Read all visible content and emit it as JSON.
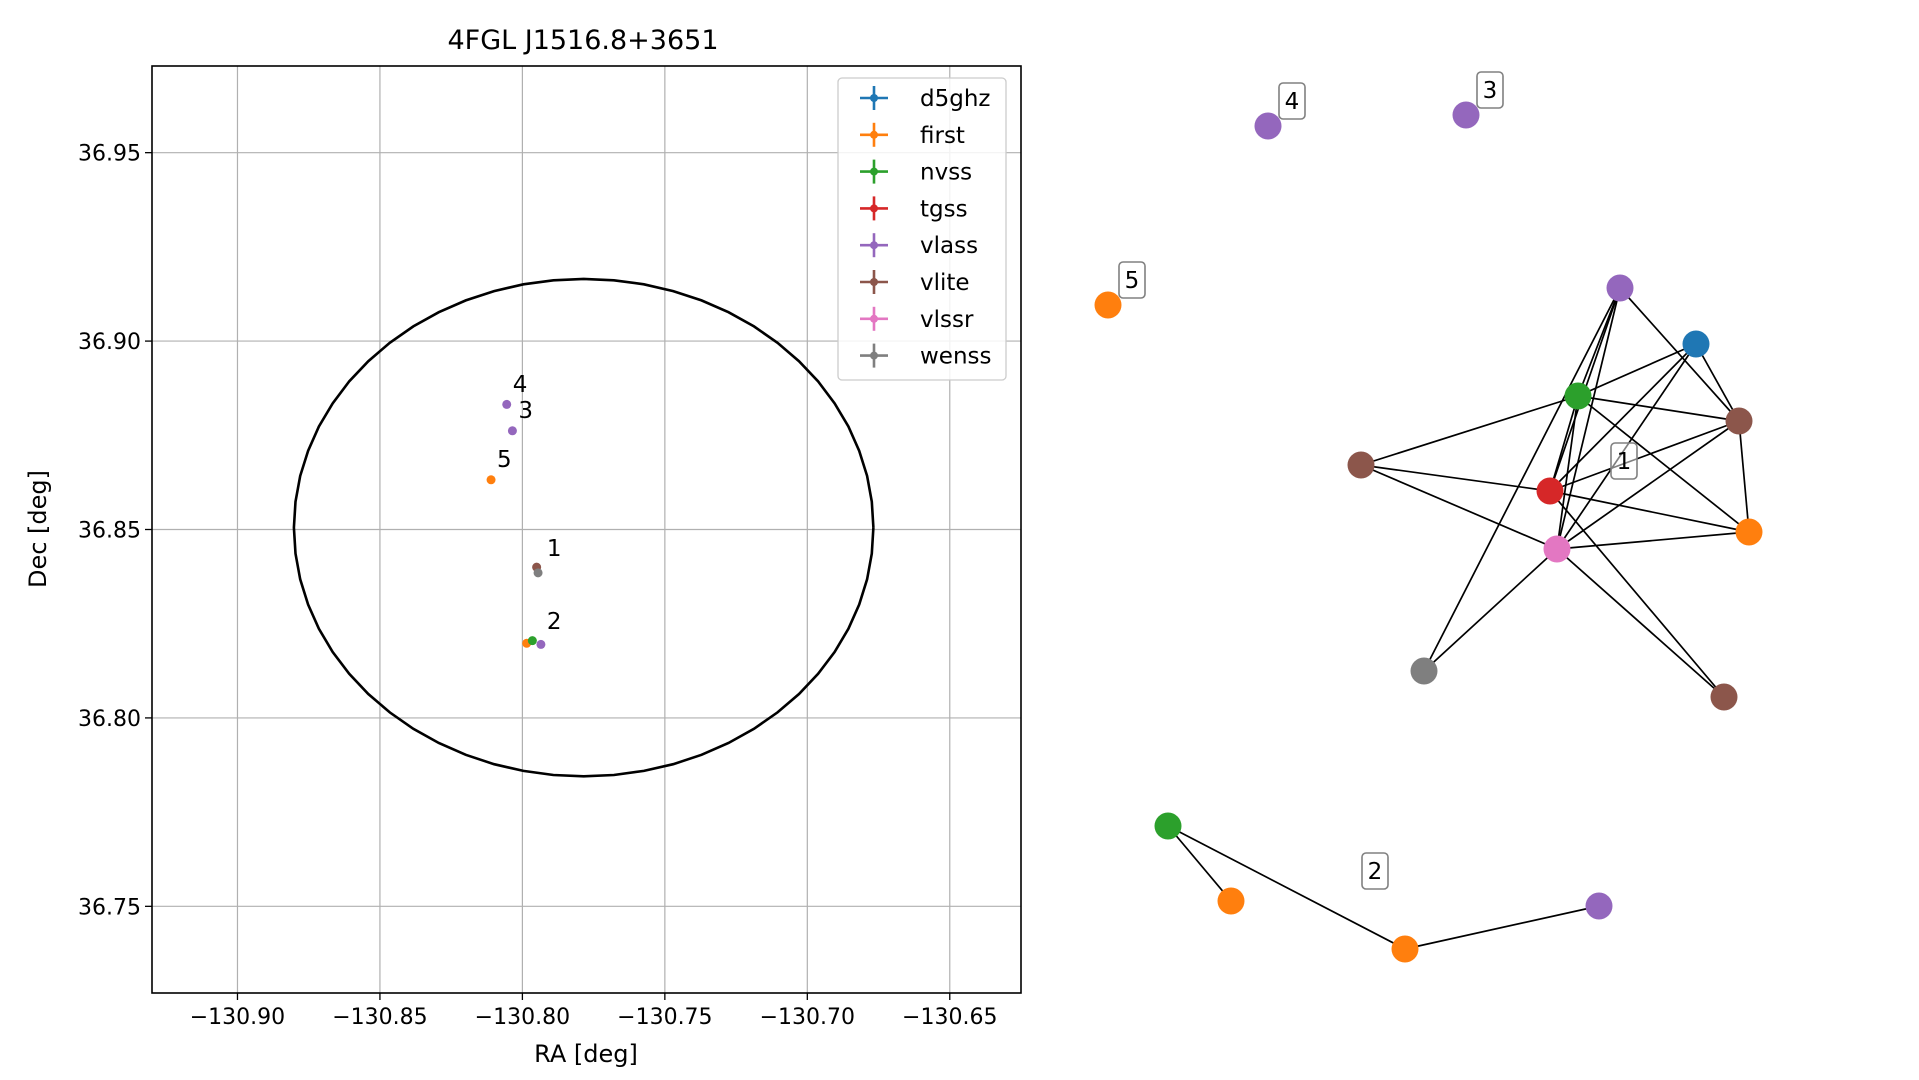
{
  "chart_data": [
    {
      "type": "scatter",
      "title": "4FGL J1516.8+3651",
      "xlabel": "RA [deg]",
      "ylabel": "Dec [deg]",
      "xlim": [
        -130.93,
        -130.625
      ],
      "ylim": [
        36.727,
        36.973
      ],
      "xticks": [
        -130.9,
        -130.85,
        -130.8,
        -130.75,
        -130.7,
        -130.65
      ],
      "xtick_labels": [
        "−130.90",
        "−130.85",
        "−130.80",
        "−130.75",
        "−130.70",
        "−130.65"
      ],
      "yticks": [
        36.75,
        36.8,
        36.85,
        36.9,
        36.95
      ],
      "ytick_labels": [
        "36.75",
        "36.80",
        "36.85",
        "36.90",
        "36.95"
      ],
      "grid": true,
      "legend_position": "top-right",
      "ellipse": {
        "ra": -130.7785,
        "dec": 36.8505,
        "ra_radius": 0.1017,
        "dec_radius": 0.066
      },
      "series": [
        {
          "name": "d5ghz",
          "color": "#1f77b4",
          "points": []
        },
        {
          "name": "first",
          "color": "#ff7f0e",
          "points": [
            {
              "ra": -130.811,
              "dec": 36.8632
            },
            {
              "ra": -130.7985,
              "dec": 36.8198
            }
          ]
        },
        {
          "name": "nvss",
          "color": "#2ca02c",
          "points": [
            {
              "ra": -130.7965,
              "dec": 36.8205
            }
          ]
        },
        {
          "name": "tgss",
          "color": "#d62728",
          "points": []
        },
        {
          "name": "vlass",
          "color": "#9467bd",
          "points": [
            {
              "ra": -130.8055,
              "dec": 36.8832
            },
            {
              "ra": -130.8035,
              "dec": 36.8762
            },
            {
              "ra": -130.7935,
              "dec": 36.8195
            }
          ]
        },
        {
          "name": "vlite",
          "color": "#8c564b",
          "points": [
            {
              "ra": -130.795,
              "dec": 36.84
            }
          ]
        },
        {
          "name": "vlssr",
          "color": "#e377c2",
          "points": []
        },
        {
          "name": "wenss",
          "color": "#7f7f7f",
          "points": [
            {
              "ra": -130.7945,
              "dec": 36.8385
            }
          ]
        }
      ],
      "annotations": [
        {
          "text": "1",
          "ra": -130.7935,
          "dec": 36.8425
        },
        {
          "text": "2",
          "ra": -130.7935,
          "dec": 36.823
        },
        {
          "text": "3",
          "ra": -130.8035,
          "dec": 36.879
        },
        {
          "text": "4",
          "ra": -130.8055,
          "dec": 36.886
        },
        {
          "text": "5",
          "ra": -130.811,
          "dec": 36.866
        }
      ]
    },
    {
      "type": "network",
      "group_labels": [
        "1",
        "2",
        "3",
        "4",
        "5"
      ],
      "nodes": [
        {
          "id": "vlass_a",
          "catalog": "vlass",
          "color": "#9467bd"
        },
        {
          "id": "d5ghz_a",
          "catalog": "d5ghz",
          "color": "#1f77b4"
        },
        {
          "id": "nvss_a",
          "catalog": "nvss",
          "color": "#2ca02c"
        },
        {
          "id": "vlite_a",
          "catalog": "vlite",
          "color": "#8c564b"
        },
        {
          "id": "vlite_b",
          "catalog": "vlite",
          "color": "#8c564b"
        },
        {
          "id": "tgss_a",
          "catalog": "tgss",
          "color": "#d62728"
        },
        {
          "id": "vlssr_a",
          "catalog": "vlssr",
          "color": "#e377c2"
        },
        {
          "id": "first_a",
          "catalog": "first",
          "color": "#ff7f0e"
        },
        {
          "id": "wenss_a",
          "catalog": "wenss",
          "color": "#7f7f7f"
        },
        {
          "id": "vlite_c",
          "catalog": "vlite",
          "color": "#8c564b"
        },
        {
          "id": "nvss_b",
          "catalog": "nvss",
          "color": "#2ca02c"
        },
        {
          "id": "first_b",
          "catalog": "first",
          "color": "#ff7f0e"
        },
        {
          "id": "first_c",
          "catalog": "first",
          "color": "#ff7f0e"
        },
        {
          "id": "vlass_b",
          "catalog": "vlass",
          "color": "#9467bd"
        },
        {
          "id": "vlass_c",
          "catalog": "vlass",
          "color": "#9467bd"
        },
        {
          "id": "vlass_d",
          "catalog": "vlass",
          "color": "#9467bd"
        },
        {
          "id": "first_d",
          "catalog": "first",
          "color": "#ff7f0e"
        }
      ],
      "edges": [
        [
          "vlass_a",
          "nvss_a"
        ],
        [
          "vlass_a",
          "tgss_a"
        ],
        [
          "vlass_a",
          "vlssr_a"
        ],
        [
          "vlass_a",
          "vlite_b"
        ],
        [
          "vlass_a",
          "wenss_a"
        ],
        [
          "d5ghz_a",
          "nvss_a"
        ],
        [
          "d5ghz_a",
          "tgss_a"
        ],
        [
          "d5ghz_a",
          "vlssr_a"
        ],
        [
          "d5ghz_a",
          "vlite_b"
        ],
        [
          "nvss_a",
          "vlite_a"
        ],
        [
          "nvss_a",
          "vlite_b"
        ],
        [
          "nvss_a",
          "tgss_a"
        ],
        [
          "nvss_a",
          "vlssr_a"
        ],
        [
          "nvss_a",
          "first_a"
        ],
        [
          "vlite_a",
          "tgss_a"
        ],
        [
          "vlite_a",
          "vlssr_a"
        ],
        [
          "vlite_b",
          "tgss_a"
        ],
        [
          "vlite_b",
          "vlssr_a"
        ],
        [
          "vlite_b",
          "first_a"
        ],
        [
          "tgss_a",
          "first_a"
        ],
        [
          "tgss_a",
          "vlite_c"
        ],
        [
          "vlssr_a",
          "first_a"
        ],
        [
          "vlssr_a",
          "wenss_a"
        ],
        [
          "vlssr_a",
          "vlite_c"
        ],
        [
          "nvss_b",
          "first_b"
        ],
        [
          "nvss_b",
          "first_c"
        ],
        [
          "first_c",
          "vlass_d"
        ]
      ]
    }
  ]
}
